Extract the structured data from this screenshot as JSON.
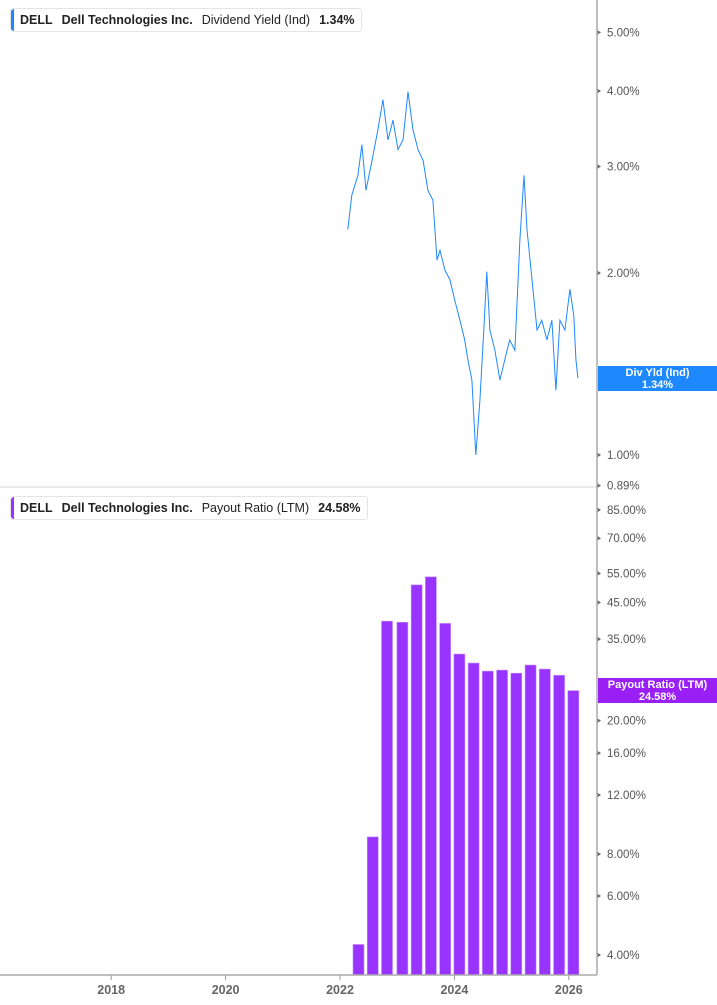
{
  "colors": {
    "yield": "#1e88ff",
    "payout": "#9933ff",
    "axis": "#aaaaaa"
  },
  "top_legend": {
    "ticker": "DELL",
    "company": "Dell Technologies Inc.",
    "metric": "Dividend Yield (Ind)",
    "value": "1.34%"
  },
  "bottom_legend": {
    "ticker": "DELL",
    "company": "Dell Technologies Inc.",
    "metric": "Payout Ratio (LTM)",
    "value": "24.58%"
  },
  "top_flag": {
    "label": "Div Yld (Ind)",
    "value": "1.34%"
  },
  "bottom_flag": {
    "label": "Payout Ratio (LTM)",
    "value": "24.58%"
  },
  "chart_data": [
    {
      "type": "line",
      "scale": "log",
      "series": [
        {
          "name": "Dividend Yield (Ind)",
          "unit": "%",
          "points": [
            [
              "2022-02-20",
              2.36
            ],
            [
              "2022-03-17",
              2.69
            ],
            [
              "2022-04-25",
              2.9
            ],
            [
              "2022-05-21",
              3.26
            ],
            [
              "2022-06-16",
              2.74
            ],
            [
              "2022-07-24",
              3.07
            ],
            [
              "2022-08-31",
              3.45
            ],
            [
              "2022-10-02",
              3.87
            ],
            [
              "2022-11-03",
              3.32
            ],
            [
              "2022-12-05",
              3.58
            ],
            [
              "2023-01-06",
              3.2
            ],
            [
              "2023-02-07",
              3.32
            ],
            [
              "2023-03-11",
              3.99
            ],
            [
              "2023-04-12",
              3.45
            ],
            [
              "2023-05-14",
              3.2
            ],
            [
              "2023-06-15",
              3.07
            ],
            [
              "2023-07-16",
              2.74
            ],
            [
              "2023-08-17",
              2.64
            ],
            [
              "2023-09-12",
              2.1
            ],
            [
              "2023-10-01",
              2.18
            ],
            [
              "2023-11-02",
              2.02
            ],
            [
              "2023-12-03",
              1.95
            ],
            [
              "2024-01-04",
              1.8
            ],
            [
              "2024-02-05",
              1.67
            ],
            [
              "2024-03-07",
              1.55
            ],
            [
              "2024-03-27",
              1.44
            ],
            [
              "2024-04-22",
              1.33
            ],
            [
              "2024-05-17",
              1.0
            ],
            [
              "2024-06-12",
              1.23
            ],
            [
              "2024-07-07",
              1.61
            ],
            [
              "2024-07-26",
              2.01
            ],
            [
              "2024-08-15",
              1.61
            ],
            [
              "2024-09-16",
              1.49
            ],
            [
              "2024-10-18",
              1.33
            ],
            [
              "2024-11-19",
              1.44
            ],
            [
              "2024-12-20",
              1.55
            ],
            [
              "2025-01-22",
              1.49
            ],
            [
              "2025-02-23",
              2.27
            ],
            [
              "2025-03-21",
              2.9
            ],
            [
              "2025-04-09",
              2.36
            ],
            [
              "2025-05-11",
              1.95
            ],
            [
              "2025-06-12",
              1.61
            ],
            [
              "2025-07-13",
              1.67
            ],
            [
              "2025-08-14",
              1.55
            ],
            [
              "2025-09-15",
              1.67
            ],
            [
              "2025-10-11",
              1.28
            ],
            [
              "2025-11-05",
              1.67
            ],
            [
              "2025-12-07",
              1.61
            ],
            [
              "2026-01-08",
              1.88
            ],
            [
              "2026-02-02",
              1.7
            ],
            [
              "2026-02-15",
              1.44
            ],
            [
              "2026-02-28",
              1.34
            ]
          ]
        }
      ],
      "y_ticks": [
        "5.00%",
        "4.00%",
        "3.00%",
        "2.00%",
        "1.00%",
        "0.89%"
      ],
      "y_tick_values": [
        5,
        4,
        3,
        2,
        1,
        0.89
      ],
      "ylim": [
        0.89,
        5.5
      ]
    },
    {
      "type": "bar",
      "scale": "log",
      "series": [
        {
          "name": "Payout Ratio (LTM)",
          "unit": "%",
          "points": [
            [
              "2022-04-29",
              4.3
            ],
            [
              "2022-07-29",
              9.0
            ],
            [
              "2022-10-28",
              39.6
            ],
            [
              "2023-02-03",
              39.3
            ],
            [
              "2023-05-05",
              50.8
            ],
            [
              "2023-08-04",
              53.7
            ],
            [
              "2023-11-03",
              39.0
            ],
            [
              "2024-02-02",
              31.6
            ],
            [
              "2024-05-03",
              29.7
            ],
            [
              "2024-08-02",
              28.1
            ],
            [
              "2024-11-01",
              28.3
            ],
            [
              "2025-01-31",
              27.7
            ],
            [
              "2025-05-02",
              29.3
            ],
            [
              "2025-08-01",
              28.5
            ],
            [
              "2025-10-31",
              27.3
            ],
            [
              "2026-01-30",
              24.58
            ]
          ]
        }
      ],
      "y_ticks": [
        "85.00%",
        "70.00%",
        "55.00%",
        "45.00%",
        "35.00%",
        "20.00%",
        "16.00%",
        "12.00%",
        "8.00%",
        "6.00%",
        "4.00%"
      ],
      "y_tick_values": [
        85,
        70,
        55,
        45,
        35,
        20,
        16,
        12,
        8,
        6,
        4
      ],
      "ylim": [
        3.6,
        100
      ]
    }
  ],
  "x_axis": {
    "ticks": [
      "2018",
      "2020",
      "2022",
      "2024",
      "2026"
    ],
    "tick_values": [
      2018,
      2020,
      2022,
      2024,
      2026
    ]
  }
}
